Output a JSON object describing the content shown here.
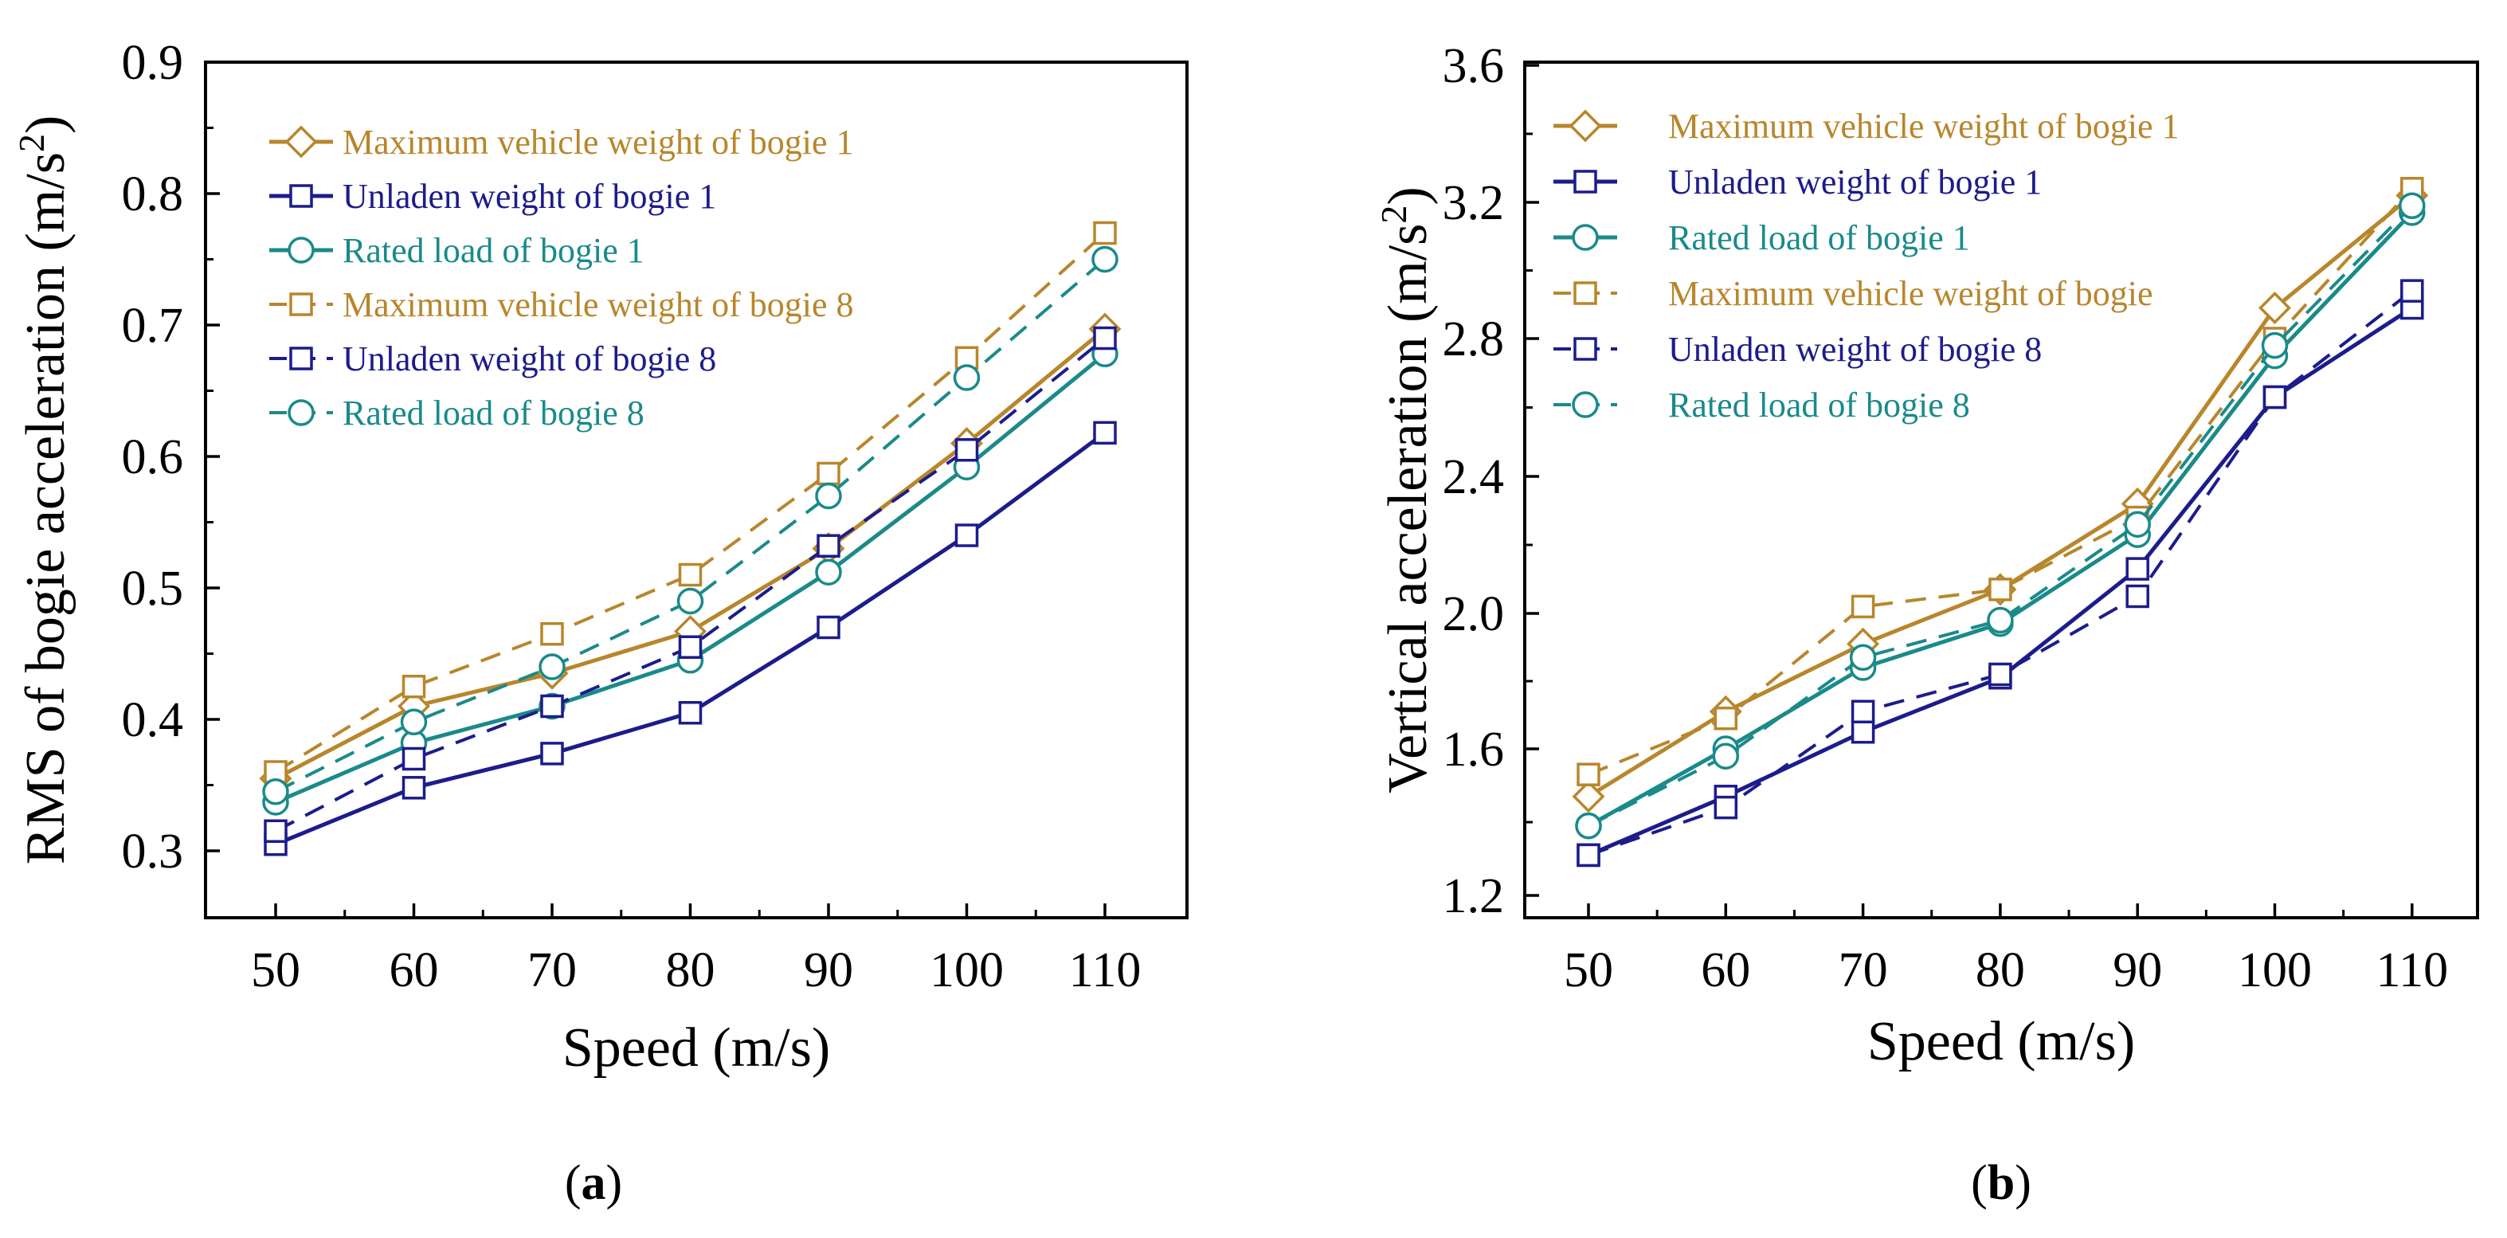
{
  "colors": {
    "gold": "#b8862b",
    "navy": "#1c1c8c",
    "teal": "#1a8a8a",
    "axis": "#000000"
  },
  "chart_data": [
    {
      "type": "line",
      "panel_label": "a",
      "xlabel": "Speed (m/s)",
      "ylabel_main": "RMS of bogie acceleration (m/s",
      "ylabel_sup": "2",
      "ylabel_close": ")",
      "x": [
        50,
        60,
        70,
        80,
        90,
        100,
        110
      ],
      "xticks": [
        "50",
        "60",
        "70",
        "80",
        "90",
        "100",
        "110"
      ],
      "yticks": [
        "0.3",
        "0.4",
        "0.5",
        "0.6",
        "0.7",
        "0.8",
        "0.9"
      ],
      "ylim": [
        0.25,
        0.9
      ],
      "legend_position": "top-left",
      "series": [
        {
          "name": "Maximum vehicle weight of bogie 1",
          "color": "gold",
          "dash": "solid",
          "marker": "diamond",
          "values": [
            0.355,
            0.41,
            0.435,
            0.467,
            0.53,
            0.61,
            0.697
          ]
        },
        {
          "name": "Unladen weight of bogie 1",
          "color": "navy",
          "dash": "solid",
          "marker": "square",
          "values": [
            0.305,
            0.348,
            0.374,
            0.405,
            0.47,
            0.54,
            0.618
          ]
        },
        {
          "name": "Rated load of bogie 1",
          "color": "teal",
          "dash": "solid",
          "marker": "circle",
          "values": [
            0.337,
            0.382,
            0.41,
            0.445,
            0.512,
            0.592,
            0.678
          ]
        },
        {
          "name": "Maximum vehicle weight of bogie 8",
          "color": "gold",
          "dash": "dashed",
          "marker": "square",
          "values": [
            0.36,
            0.425,
            0.465,
            0.51,
            0.587,
            0.675,
            0.77
          ]
        },
        {
          "name": "Unladen weight of bogie 8",
          "color": "navy",
          "dash": "dashed",
          "marker": "square",
          "values": [
            0.315,
            0.37,
            0.41,
            0.455,
            0.532,
            0.605,
            0.69
          ]
        },
        {
          "name": "Rated load of bogie 8",
          "color": "teal",
          "dash": "dashed",
          "marker": "circle",
          "values": [
            0.345,
            0.398,
            0.44,
            0.49,
            0.57,
            0.66,
            0.75
          ]
        }
      ]
    },
    {
      "type": "line",
      "panel_label": "b",
      "xlabel": "Speed (m/s)",
      "ylabel_main": "Vertical acceleration (m/s",
      "ylabel_sup": "2",
      "ylabel_close": ")",
      "x": [
        50,
        60,
        70,
        80,
        90,
        100,
        110
      ],
      "xticks": [
        "50",
        "60",
        "70",
        "80",
        "90",
        "100",
        "110"
      ],
      "yticks": [
        "1.2",
        "1.6",
        "2.0",
        "2.4",
        "2.8",
        "3.2",
        "3.6"
      ],
      "ylim": [
        1.1,
        3.6
      ],
      "legend_position": "top-left",
      "series": [
        {
          "name": "Maximum vehicle weight of bogie 1",
          "color": "gold",
          "dash": "solid",
          "marker": "diamond",
          "values": [
            1.47,
            1.71,
            1.91,
            2.07,
            2.32,
            2.89,
            3.22
          ]
        },
        {
          "name": "Unladen weight of bogie 1",
          "color": "navy",
          "dash": "solid",
          "marker": "square",
          "values": [
            1.31,
            1.47,
            1.65,
            1.81,
            2.13,
            2.63,
            2.89
          ]
        },
        {
          "name": "Rated load of bogie 1",
          "color": "teal",
          "dash": "solid",
          "marker": "circle",
          "values": [
            1.39,
            1.6,
            1.84,
            1.97,
            2.23,
            2.75,
            3.17
          ]
        },
        {
          "name": "Maximum vehicle weight of bogie",
          "color": "gold",
          "dash": "dashed",
          "marker": "square",
          "values": [
            1.53,
            1.69,
            2.02,
            2.07,
            2.28,
            2.8,
            3.24
          ]
        },
        {
          "name": "Unladen weight of bogie 8",
          "color": "navy",
          "dash": "dashed",
          "marker": "square",
          "values": [
            1.31,
            1.44,
            1.71,
            1.82,
            2.05,
            2.63,
            2.94
          ]
        },
        {
          "name": "Rated load of bogie 8",
          "color": "teal",
          "dash": "dashed",
          "marker": "circle",
          "values": [
            1.39,
            1.58,
            1.87,
            1.98,
            2.26,
            2.78,
            3.19
          ]
        }
      ]
    }
  ]
}
